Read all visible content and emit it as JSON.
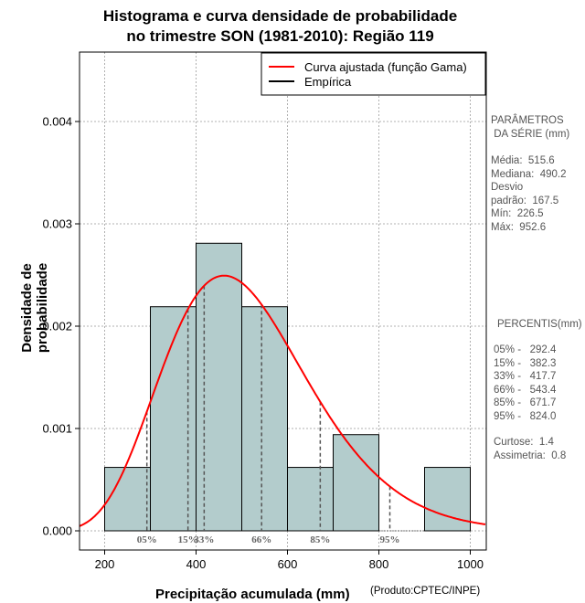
{
  "chart_data": {
    "type": "histogram",
    "title_line1": "Histograma e curva densidade de probabilidade",
    "title_line2": "no trimestre SON (1981-2010): Região 119",
    "xlabel": "Precipitação acumulada (mm)",
    "ylabel": "Densidade de probabilidade",
    "credit": "(Produto:CPTEC/INPE)",
    "xlim": [
      145,
      1035
    ],
    "ylim": [
      0,
      0.00445
    ],
    "xticks": [
      200,
      400,
      600,
      800,
      1000
    ],
    "yticks": [
      0.0,
      0.001,
      0.002,
      0.003,
      0.004
    ],
    "ytick_labels": [
      "0.000",
      "0.001",
      "0.002",
      "0.003",
      "0.004"
    ],
    "bins": [
      {
        "from": 200,
        "to": 300,
        "density": 0.00062
      },
      {
        "from": 300,
        "to": 400,
        "density": 0.00219
      },
      {
        "from": 400,
        "to": 500,
        "density": 0.00281
      },
      {
        "from": 500,
        "to": 600,
        "density": 0.00219
      },
      {
        "from": 600,
        "to": 700,
        "density": 0.00062
      },
      {
        "from": 700,
        "to": 800,
        "density": 0.00094
      },
      {
        "from": 800,
        "to": 900,
        "density": 0
      },
      {
        "from": 900,
        "to": 1000,
        "density": 0.00062
      }
    ],
    "gamma_fit": {
      "mean": 515.6,
      "sd": 167.5
    },
    "percentile_lines": [
      {
        "label": "05%",
        "value": 292.4
      },
      {
        "label": "15%",
        "value": 382.3
      },
      {
        "label": "33%",
        "value": 417.7
      },
      {
        "label": "66%",
        "value": 543.4
      },
      {
        "label": "85%",
        "value": 671.7
      },
      {
        "label": "95%",
        "value": 824.0
      }
    ],
    "legend": [
      {
        "label": "Curva ajustada (função Gama)",
        "color": "#ff0000"
      },
      {
        "label": "Empírica",
        "color": "#000000"
      }
    ],
    "legend_position": "top-right",
    "grid": true,
    "colors": {
      "bar_fill": "#b3cccc",
      "curve": "#ff0000",
      "percentile": "#555555"
    }
  },
  "side_panel": {
    "params_title1": "PARÂMETROS",
    "params_title2": " DA SÉRIE (mm)",
    "media": "Média:  515.6",
    "mediana": "Mediana:  490.2",
    "desvio": "Desvio",
    "padrao": "padrão:  167.5",
    "min": "Mín:  226.5",
    "max": "Máx:  952.6",
    "pct_title": "PERCENTIS(mm)",
    "p05": "05% -   292.4",
    "p15": "15% -   382.3",
    "p33": "33% -   417.7",
    "p66": "66% -   543.4",
    "p85": "85% -   671.7",
    "p95": "95% -   824.0",
    "curtose": "Curtose:  1.4",
    "assimetria": "Assimetria:  0.8"
  }
}
